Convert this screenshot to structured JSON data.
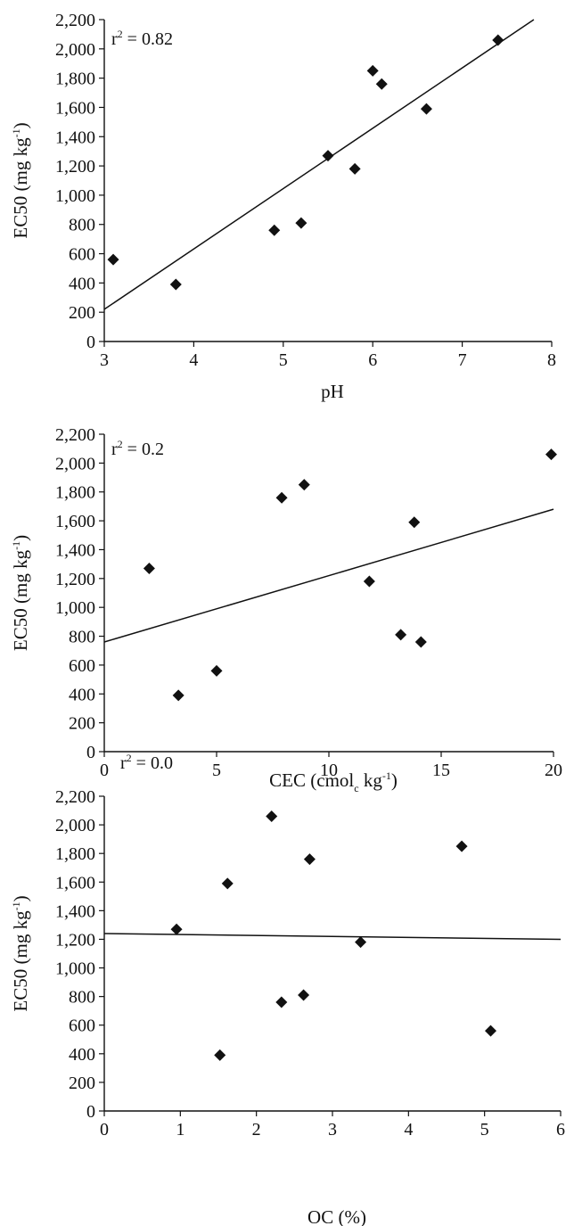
{
  "colors": {
    "ink": "#111111",
    "background": "#ffffff"
  },
  "chart_data": [
    {
      "type": "scatter",
      "title": "",
      "xlabel": "pH",
      "ylabel": {
        "main": "EC50 (mg kg",
        "sup": "-1",
        "close": ")"
      },
      "annotation": {
        "r": "r",
        "sup": "2",
        "value": " = 0.82"
      },
      "xlim": [
        3,
        8
      ],
      "ylim": [
        0,
        2200
      ],
      "xticks": [
        "3",
        "4",
        "5",
        "6",
        "7",
        "8"
      ],
      "yticks": [
        "0",
        "200",
        "400",
        "600",
        "800",
        "1,000",
        "1,200",
        "1,400",
        "1,600",
        "1,800",
        "2,000",
        "2,200"
      ],
      "grid": false,
      "points": [
        {
          "x": 3.1,
          "y": 560
        },
        {
          "x": 3.8,
          "y": 390
        },
        {
          "x": 4.9,
          "y": 760
        },
        {
          "x": 5.2,
          "y": 810
        },
        {
          "x": 5.5,
          "y": 1270
        },
        {
          "x": 5.8,
          "y": 1180
        },
        {
          "x": 6.0,
          "y": 1850
        },
        {
          "x": 6.1,
          "y": 1760
        },
        {
          "x": 6.6,
          "y": 1590
        },
        {
          "x": 7.4,
          "y": 2060
        }
      ],
      "trendline": {
        "x": [
          3.0,
          7.8
        ],
        "y": [
          220,
          2200
        ]
      }
    },
    {
      "type": "scatter",
      "title": "",
      "xlabel": {
        "main": "CEC (cmol",
        "sub": "c",
        "rest": " kg",
        "sup": "-1",
        "close": ")"
      },
      "ylabel": {
        "main": "EC50 (mg kg",
        "sup": "-1",
        "close": ")"
      },
      "annotation": {
        "r": "r",
        "sup": "2",
        "value": " = 0.2"
      },
      "xlim": [
        0,
        20
      ],
      "ylim": [
        0,
        2200
      ],
      "xticks": [
        "0",
        "5",
        "10",
        "15",
        "20"
      ],
      "yticks": [
        "0",
        "200",
        "400",
        "600",
        "800",
        "1,000",
        "1,200",
        "1,400",
        "1,600",
        "1,800",
        "2,000",
        "2,200"
      ],
      "grid": false,
      "points": [
        {
          "x": 2.0,
          "y": 1270
        },
        {
          "x": 3.3,
          "y": 390
        },
        {
          "x": 5.0,
          "y": 560
        },
        {
          "x": 7.9,
          "y": 1760
        },
        {
          "x": 8.9,
          "y": 1850
        },
        {
          "x": 11.8,
          "y": 1180
        },
        {
          "x": 13.2,
          "y": 810
        },
        {
          "x": 13.8,
          "y": 1590
        },
        {
          "x": 14.1,
          "y": 760
        },
        {
          "x": 19.9,
          "y": 2060
        }
      ],
      "trendline": {
        "x": [
          0,
          20
        ],
        "y": [
          760,
          1680
        ]
      }
    },
    {
      "type": "scatter",
      "title": "",
      "xlabel": "OC (%)",
      "ylabel": {
        "main": "EC50 (mg kg",
        "sup": "-1",
        "close": ")"
      },
      "annotation": {
        "r": "r",
        "sup": "2",
        "value": " = 0.0"
      },
      "xlim": [
        0,
        6
      ],
      "ylim": [
        0,
        2200
      ],
      "xticks": [
        "0",
        "1",
        "2",
        "3",
        "4",
        "5",
        "6"
      ],
      "yticks": [
        "0",
        "200",
        "400",
        "600",
        "800",
        "1,000",
        "1,200",
        "1,400",
        "1,600",
        "1,800",
        "2,000",
        "2,200"
      ],
      "grid": false,
      "points": [
        {
          "x": 0.95,
          "y": 1270
        },
        {
          "x": 1.52,
          "y": 390
        },
        {
          "x": 1.62,
          "y": 1590
        },
        {
          "x": 2.2,
          "y": 2060
        },
        {
          "x": 2.33,
          "y": 760
        },
        {
          "x": 2.62,
          "y": 810
        },
        {
          "x": 2.7,
          "y": 1760
        },
        {
          "x": 3.37,
          "y": 1180
        },
        {
          "x": 4.7,
          "y": 1850
        },
        {
          "x": 5.08,
          "y": 560
        }
      ],
      "trendline": {
        "x": [
          0,
          6
        ],
        "y": [
          1240,
          1200
        ]
      }
    }
  ]
}
